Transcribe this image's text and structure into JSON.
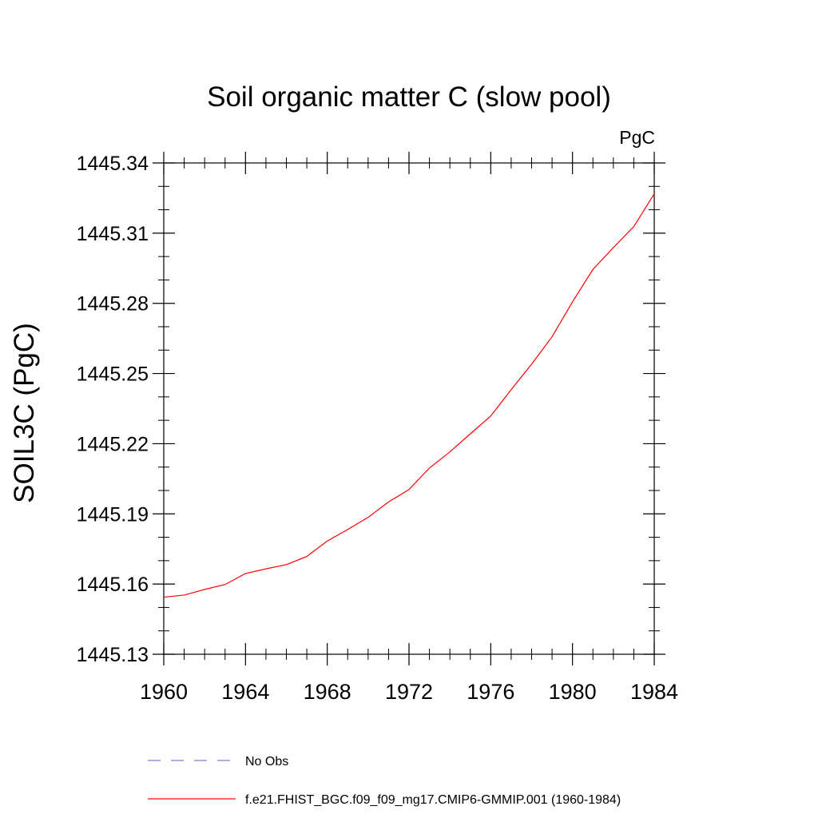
{
  "chart_data": {
    "type": "line",
    "title": "Soil organic matter C (slow pool)",
    "units_label": "PgC",
    "xlabel": "",
    "ylabel": "SOIL3C  (PgC)",
    "xlim": [
      1960,
      1984
    ],
    "ylim": [
      1445.13,
      1445.34
    ],
    "x_ticks": [
      1960,
      1964,
      1968,
      1972,
      1976,
      1980,
      1984
    ],
    "x_tick_labels": [
      "1960",
      "1964",
      "1968",
      "1972",
      "1976",
      "1980",
      "1984"
    ],
    "y_ticks": [
      1445.13,
      1445.16,
      1445.19,
      1445.22,
      1445.25,
      1445.28,
      1445.31,
      1445.34
    ],
    "y_tick_labels": [
      "1445.13",
      "1445.16",
      "1445.19",
      "1445.22",
      "1445.25",
      "1445.28",
      "1445.31",
      "1445.34"
    ],
    "grid": false,
    "legend_position": "bottom",
    "series": [
      {
        "name": "No Obs",
        "color": "#7f7fcc",
        "dash": true,
        "x": [],
        "y": []
      },
      {
        "name": "f.e21.FHIST_BGC.f09_f09_mg17.CMIP6-GMMIP.001 (1960-1984)",
        "color": "#ff0000",
        "dash": false,
        "x": [
          1960,
          1961,
          1962,
          1963,
          1964,
          1965,
          1966,
          1967,
          1968,
          1969,
          1970,
          1971,
          1972,
          1973,
          1974,
          1975,
          1976,
          1977,
          1978,
          1979,
          1980,
          1981,
          1982,
          1983,
          1984
        ],
        "y": [
          1445.1544,
          1445.1553,
          1445.1577,
          1445.1598,
          1445.1645,
          1445.1665,
          1445.1683,
          1445.1718,
          1445.1784,
          1445.1833,
          1445.1885,
          1445.1951,
          1445.2004,
          1445.2096,
          1445.2165,
          1445.2242,
          1445.2318,
          1445.2431,
          1445.254,
          1445.2657,
          1445.2806,
          1445.2945,
          1445.3038,
          1445.3128,
          1445.3268
        ]
      }
    ]
  }
}
